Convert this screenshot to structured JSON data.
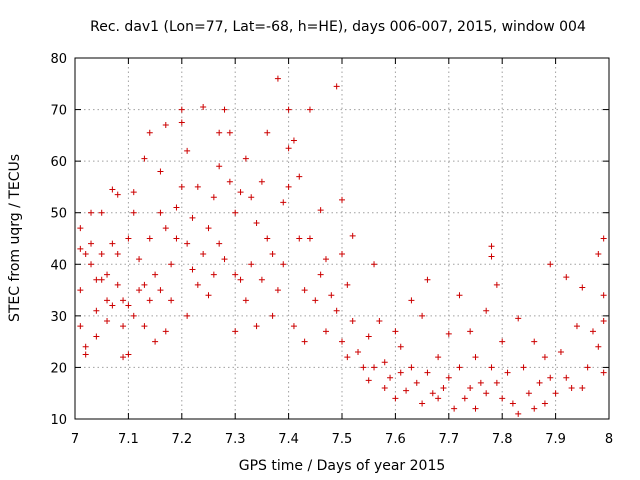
{
  "chart_data": {
    "type": "scatter",
    "title": "Rec. dav1 (Lon=77, Lat=-68, h=HE), days 006-007, 2015, window 004",
    "xlabel": "GPS time / Days of year 2015",
    "ylabel": "STEC from uqrg / TECUs",
    "xlim": [
      7,
      8
    ],
    "ylim": [
      10,
      80
    ],
    "xticks": [
      "7",
      "7.1",
      "7.2",
      "7.3",
      "7.4",
      "7.5",
      "7.6",
      "7.7",
      "7.8",
      "7.9",
      "8"
    ],
    "yticks": [
      "10",
      "20",
      "30",
      "40",
      "50",
      "60",
      "70",
      "80"
    ],
    "grid": true,
    "marker": "+",
    "color": "#cc0000",
    "series": [
      {
        "name": "STEC",
        "points": [
          [
            7.01,
            35
          ],
          [
            7.01,
            28
          ],
          [
            7.01,
            43
          ],
          [
            7.01,
            47
          ],
          [
            7.02,
            24
          ],
          [
            7.02,
            42
          ],
          [
            7.02,
            22.5
          ],
          [
            7.03,
            50
          ],
          [
            7.03,
            44
          ],
          [
            7.03,
            40
          ],
          [
            7.04,
            37
          ],
          [
            7.04,
            26
          ],
          [
            7.04,
            31
          ],
          [
            7.05,
            37
          ],
          [
            7.05,
            42
          ],
          [
            7.05,
            50
          ],
          [
            7.06,
            38
          ],
          [
            7.06,
            33
          ],
          [
            7.06,
            29
          ],
          [
            7.07,
            54.5
          ],
          [
            7.07,
            44
          ],
          [
            7.07,
            32
          ],
          [
            7.08,
            53.5
          ],
          [
            7.08,
            42
          ],
          [
            7.08,
            36
          ],
          [
            7.09,
            22
          ],
          [
            7.09,
            33
          ],
          [
            7.09,
            28
          ],
          [
            7.1,
            45
          ],
          [
            7.1,
            32
          ],
          [
            7.1,
            22.5
          ],
          [
            7.11,
            54
          ],
          [
            7.11,
            50
          ],
          [
            7.11,
            30
          ],
          [
            7.12,
            35
          ],
          [
            7.12,
            41
          ],
          [
            7.13,
            60.5
          ],
          [
            7.13,
            36
          ],
          [
            7.13,
            28
          ],
          [
            7.14,
            65.5
          ],
          [
            7.14,
            45
          ],
          [
            7.14,
            33
          ],
          [
            7.15,
            38
          ],
          [
            7.15,
            25
          ],
          [
            7.16,
            58
          ],
          [
            7.16,
            50
          ],
          [
            7.16,
            35
          ],
          [
            7.17,
            67
          ],
          [
            7.17,
            47
          ],
          [
            7.17,
            27
          ],
          [
            7.18,
            40
          ],
          [
            7.18,
            33
          ],
          [
            7.19,
            51
          ],
          [
            7.19,
            45
          ],
          [
            7.2,
            70
          ],
          [
            7.2,
            67.5
          ],
          [
            7.2,
            55
          ],
          [
            7.21,
            62
          ],
          [
            7.21,
            44
          ],
          [
            7.21,
            30
          ],
          [
            7.22,
            49
          ],
          [
            7.22,
            39
          ],
          [
            7.23,
            55
          ],
          [
            7.23,
            36
          ],
          [
            7.24,
            70.5
          ],
          [
            7.24,
            42
          ],
          [
            7.25,
            47
          ],
          [
            7.25,
            34
          ],
          [
            7.26,
            53
          ],
          [
            7.26,
            38
          ],
          [
            7.27,
            65.5
          ],
          [
            7.27,
            59
          ],
          [
            7.27,
            44
          ],
          [
            7.28,
            70
          ],
          [
            7.28,
            41
          ],
          [
            7.29,
            65.5
          ],
          [
            7.29,
            56
          ],
          [
            7.3,
            50
          ],
          [
            7.3,
            38
          ],
          [
            7.3,
            27
          ],
          [
            7.31,
            54
          ],
          [
            7.31,
            37
          ],
          [
            7.32,
            60.5
          ],
          [
            7.32,
            33
          ],
          [
            7.33,
            53
          ],
          [
            7.33,
            40
          ],
          [
            7.34,
            48
          ],
          [
            7.34,
            28
          ],
          [
            7.35,
            56
          ],
          [
            7.35,
            37
          ],
          [
            7.36,
            65.5
          ],
          [
            7.36,
            45
          ],
          [
            7.37,
            42
          ],
          [
            7.37,
            30
          ],
          [
            7.38,
            76
          ],
          [
            7.38,
            35
          ],
          [
            7.39,
            52
          ],
          [
            7.39,
            40
          ],
          [
            7.4,
            70
          ],
          [
            7.4,
            62.5
          ],
          [
            7.4,
            55
          ],
          [
            7.41,
            64
          ],
          [
            7.41,
            28
          ],
          [
            7.42,
            57
          ],
          [
            7.42,
            45
          ],
          [
            7.43,
            35
          ],
          [
            7.43,
            25
          ],
          [
            7.44,
            70
          ],
          [
            7.44,
            45
          ],
          [
            7.45,
            33
          ],
          [
            7.46,
            50.5
          ],
          [
            7.46,
            38
          ],
          [
            7.47,
            41
          ],
          [
            7.47,
            27
          ],
          [
            7.48,
            34
          ],
          [
            7.49,
            74.5
          ],
          [
            7.49,
            31
          ],
          [
            7.5,
            52.5
          ],
          [
            7.5,
            42
          ],
          [
            7.5,
            25
          ],
          [
            7.51,
            36
          ],
          [
            7.51,
            22
          ],
          [
            7.52,
            45.5
          ],
          [
            7.52,
            29
          ],
          [
            7.53,
            23
          ],
          [
            7.54,
            20
          ],
          [
            7.55,
            26
          ],
          [
            7.55,
            17.5
          ],
          [
            7.56,
            40
          ],
          [
            7.56,
            20
          ],
          [
            7.57,
            29
          ],
          [
            7.58,
            21
          ],
          [
            7.58,
            16
          ],
          [
            7.59,
            18
          ],
          [
            7.6,
            27
          ],
          [
            7.6,
            14
          ],
          [
            7.61,
            24
          ],
          [
            7.61,
            19
          ],
          [
            7.62,
            15.5
          ],
          [
            7.63,
            33
          ],
          [
            7.63,
            20
          ],
          [
            7.64,
            17
          ],
          [
            7.65,
            30
          ],
          [
            7.65,
            13
          ],
          [
            7.66,
            37
          ],
          [
            7.66,
            19
          ],
          [
            7.67,
            15
          ],
          [
            7.68,
            22
          ],
          [
            7.68,
            14
          ],
          [
            7.69,
            16
          ],
          [
            7.7,
            26.5
          ],
          [
            7.7,
            18
          ],
          [
            7.71,
            12
          ],
          [
            7.72,
            34
          ],
          [
            7.72,
            20
          ],
          [
            7.73,
            14
          ],
          [
            7.74,
            27
          ],
          [
            7.74,
            16
          ],
          [
            7.75,
            22
          ],
          [
            7.75,
            12
          ],
          [
            7.76,
            17
          ],
          [
            7.77,
            31
          ],
          [
            7.77,
            15
          ],
          [
            7.78,
            43.5
          ],
          [
            7.78,
            41.5
          ],
          [
            7.78,
            20
          ],
          [
            7.79,
            36
          ],
          [
            7.79,
            17
          ],
          [
            7.8,
            25
          ],
          [
            7.8,
            14
          ],
          [
            7.81,
            19
          ],
          [
            7.82,
            13
          ],
          [
            7.83,
            29.5
          ],
          [
            7.83,
            11
          ],
          [
            7.84,
            20
          ],
          [
            7.85,
            15
          ],
          [
            7.86,
            25
          ],
          [
            7.86,
            12
          ],
          [
            7.87,
            17
          ],
          [
            7.88,
            22
          ],
          [
            7.88,
            13
          ],
          [
            7.89,
            40
          ],
          [
            7.89,
            18
          ],
          [
            7.9,
            15
          ],
          [
            7.91,
            23
          ],
          [
            7.92,
            37.5
          ],
          [
            7.92,
            18
          ],
          [
            7.93,
            16
          ],
          [
            7.94,
            28
          ],
          [
            7.95,
            35.5
          ],
          [
            7.95,
            16
          ],
          [
            7.96,
            20
          ],
          [
            7.97,
            27
          ],
          [
            7.98,
            42
          ],
          [
            7.98,
            24
          ],
          [
            7.99,
            45
          ],
          [
            7.99,
            34
          ],
          [
            7.99,
            29
          ],
          [
            7.99,
            19
          ]
        ]
      }
    ]
  }
}
